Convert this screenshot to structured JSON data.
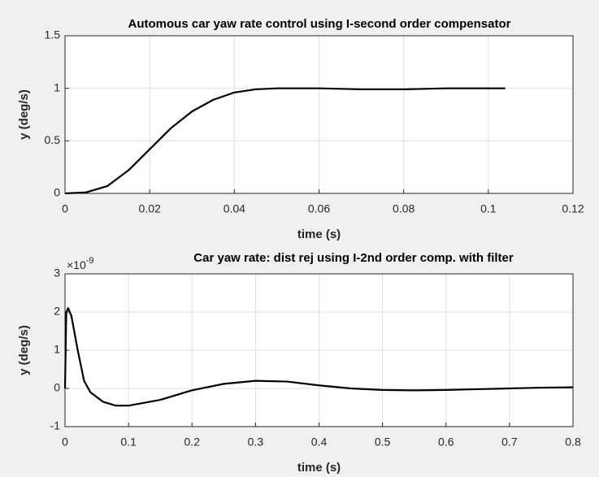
{
  "chart_data": [
    {
      "type": "line",
      "title": "Automous car yaw rate control using I-second order compensator",
      "x_label": "time (s)",
      "y_label": "y (deg/s)",
      "x": [
        0,
        0.005,
        0.01,
        0.015,
        0.02,
        0.025,
        0.03,
        0.035,
        0.04,
        0.045,
        0.05,
        0.06,
        0.07,
        0.08,
        0.09,
        0.1,
        0.104
      ],
      "values": [
        0,
        0.01,
        0.07,
        0.22,
        0.42,
        0.62,
        0.78,
        0.89,
        0.96,
        0.99,
        1.0,
        1.0,
        0.99,
        0.99,
        1.0,
        1.0,
        1.0
      ],
      "color": "#000000",
      "xlim": [
        0,
        0.12
      ],
      "xticks": [
        0,
        0.02,
        0.04,
        0.06,
        0.08,
        0.1,
        0.12
      ],
      "ylim": [
        0,
        1.5
      ],
      "yticks": [
        0,
        0.5,
        1,
        1.5
      ],
      "grid": true
    },
    {
      "type": "line",
      "title": "Car yaw rate: dist rej using I-2nd order comp. with filter",
      "x_label": "time (s)",
      "y_label": "y (deg/s)",
      "y_scale_label": {
        "base": "×10",
        "exponent": "-9"
      },
      "x": [
        0,
        0.002,
        0.005,
        0.01,
        0.02,
        0.03,
        0.04,
        0.06,
        0.08,
        0.1,
        0.15,
        0.2,
        0.25,
        0.3,
        0.35,
        0.4,
        0.45,
        0.5,
        0.55,
        0.6,
        0.65,
        0.7,
        0.75,
        0.8
      ],
      "values": [
        0,
        2.0,
        2.1,
        1.9,
        1.0,
        0.2,
        -0.1,
        -0.35,
        -0.45,
        -0.45,
        -0.3,
        -0.05,
        0.12,
        0.2,
        0.18,
        0.08,
        0.0,
        -0.04,
        -0.05,
        -0.04,
        -0.02,
        0.0,
        0.02,
        0.03
      ],
      "color": "#000000",
      "xlim": [
        0,
        0.8
      ],
      "xticks": [
        0,
        0.1,
        0.2,
        0.3,
        0.4,
        0.5,
        0.6,
        0.7,
        0.8
      ],
      "ylim": [
        -1,
        3
      ],
      "yticks": [
        -1,
        0,
        1,
        2,
        3
      ],
      "grid": true
    }
  ]
}
